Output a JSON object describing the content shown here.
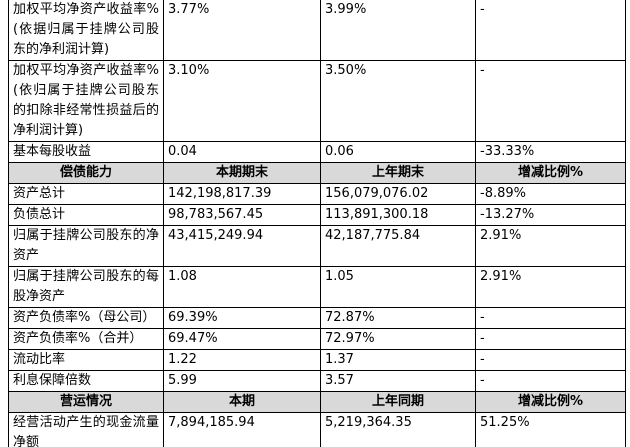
{
  "table": {
    "sections": [
      {
        "rows": [
          [
            "加权平均净资产收益率%(依据归属于挂牌公司股东的净利润计算)",
            "3.77%",
            "3.99%",
            "-"
          ],
          [
            "加权平均净资产收益率%(依归属于挂牌公司股东的扣除非经常性损益后的净利润计算)",
            "3.10%",
            "3.50%",
            "-"
          ],
          [
            "基本每股收益",
            "0.04",
            "0.06",
            "-33.33%"
          ]
        ]
      },
      {
        "header": [
          "偿债能力",
          "本期期末",
          "上年期末",
          "增减比例%"
        ],
        "rows": [
          [
            "资产总计",
            "142,198,817.39",
            "156,079,076.02",
            "-8.89%"
          ],
          [
            "负债总计",
            "98,783,567.45",
            "113,891,300.18",
            "-13.27%"
          ],
          [
            "归属于挂牌公司股东的净资产",
            "43,415,249.94",
            "42,187,775.84",
            "2.91%"
          ],
          [
            "归属于挂牌公司股东的每股净资产",
            "1.08",
            "1.05",
            "2.91%"
          ],
          [
            "资产负债率%（母公司）",
            "69.39%",
            "72.87%",
            "-"
          ],
          [
            "资产负债率%（合并）",
            "69.47%",
            "72.97%",
            "-"
          ],
          [
            "流动比率",
            "1.22",
            "1.37",
            "-"
          ],
          [
            "利息保障倍数",
            "5.99",
            "3.57",
            "-"
          ]
        ]
      },
      {
        "header": [
          "营运情况",
          "本期",
          "上年同期",
          "增减比例%"
        ],
        "rows": [
          [
            "经营活动产生的现金流量净额",
            "7,894,185.94",
            "5,219,364.35",
            "51.25%"
          ]
        ]
      }
    ]
  }
}
